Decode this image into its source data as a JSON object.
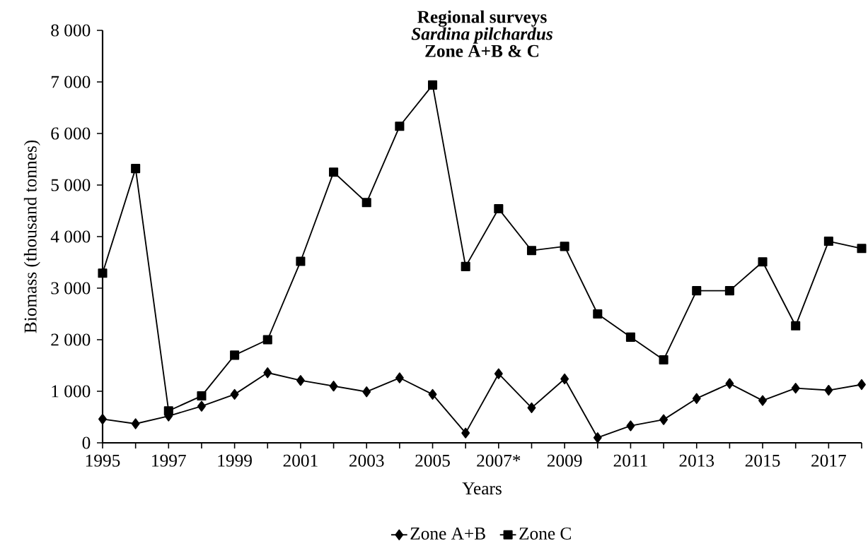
{
  "chart_data": {
    "type": "line",
    "title": "Regional surveys",
    "subtitle": "Sardina pilchardus",
    "annotations": [
      "Zone A+B & C"
    ],
    "xlabel": "Years",
    "ylabel": "Biomass (thousand tonnes)",
    "categories": [
      "1995",
      null,
      "1997",
      null,
      "1999",
      null,
      "2001",
      null,
      "2003",
      null,
      "2005",
      null,
      "2007*",
      null,
      "2009",
      null,
      "2011",
      null,
      "2013",
      null,
      "2015",
      null,
      "2017",
      null
    ],
    "series": [
      {
        "name": "Zone A+B",
        "color": "#000000",
        "marker": "diamond",
        "values": [
          460,
          370,
          520,
          710,
          940,
          1360,
          1210,
          1100,
          990,
          1260,
          940,
          190,
          1340,
          680,
          1240,
          100,
          330,
          450,
          860,
          1150,
          820,
          1060,
          1020,
          1130
        ]
      },
      {
        "name": "Zone C",
        "color": "#000000",
        "marker": "square",
        "values": [
          3290,
          5320,
          620,
          910,
          1700,
          2000,
          3520,
          5250,
          4660,
          6140,
          6940,
          3420,
          4540,
          3730,
          3810,
          2500,
          2050,
          1610,
          2950,
          2950,
          3510,
          2270,
          3910,
          3770
        ]
      }
    ],
    "ylim": [
      0,
      8000
    ],
    "yticks": [
      {
        "value": 0,
        "label": "0"
      },
      {
        "value": 1000,
        "label": "1 000"
      },
      {
        "value": 2000,
        "label": "2 000"
      },
      {
        "value": 3000,
        "label": "3 000"
      },
      {
        "value": 4000,
        "label": "4 000"
      },
      {
        "value": 5000,
        "label": "5 000"
      },
      {
        "value": 6000,
        "label": "6 000"
      },
      {
        "value": 7000,
        "label": "7 000"
      },
      {
        "value": 8000,
        "label": "8 000"
      }
    ],
    "legend": "bottom"
  }
}
